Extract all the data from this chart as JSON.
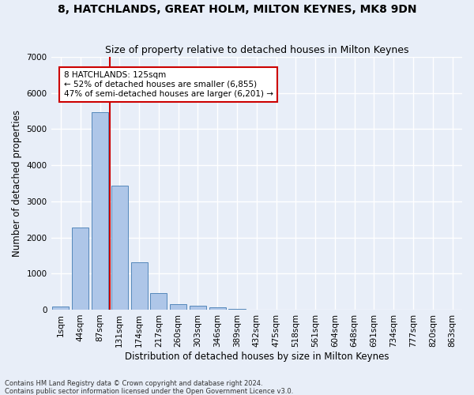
{
  "title": "8, HATCHLANDS, GREAT HOLM, MILTON KEYNES, MK8 9DN",
  "subtitle": "Size of property relative to detached houses in Milton Keynes",
  "xlabel": "Distribution of detached houses by size in Milton Keynes",
  "ylabel": "Number of detached properties",
  "footnote1": "Contains HM Land Registry data © Crown copyright and database right 2024.",
  "footnote2": "Contains public sector information licensed under the Open Government Licence v3.0.",
  "bar_labels": [
    "1sqm",
    "44sqm",
    "87sqm",
    "131sqm",
    "174sqm",
    "217sqm",
    "260sqm",
    "303sqm",
    "346sqm",
    "389sqm",
    "432sqm",
    "475sqm",
    "518sqm",
    "561sqm",
    "604sqm",
    "648sqm",
    "691sqm",
    "734sqm",
    "777sqm",
    "820sqm",
    "863sqm"
  ],
  "bar_values": [
    80,
    2270,
    5470,
    3440,
    1310,
    460,
    155,
    100,
    65,
    30,
    0,
    0,
    0,
    0,
    0,
    0,
    0,
    0,
    0,
    0,
    0
  ],
  "bar_color": "#aec6e8",
  "bar_edge_color": "#5588bb",
  "vline_color": "#cc0000",
  "annotation_text": "8 HATCHLANDS: 125sqm\n← 52% of detached houses are smaller (6,855)\n47% of semi-detached houses are larger (6,201) →",
  "annotation_box_color": "#ffffff",
  "annotation_box_edge": "#cc0000",
  "ylim": [
    0,
    7000
  ],
  "yticks": [
    0,
    1000,
    2000,
    3000,
    4000,
    5000,
    6000,
    7000
  ],
  "background_color": "#e8eef8",
  "grid_color": "#ffffff",
  "title_fontsize": 10,
  "subtitle_fontsize": 9,
  "axis_label_fontsize": 8.5,
  "tick_fontsize": 7.5,
  "footnote_fontsize": 6
}
